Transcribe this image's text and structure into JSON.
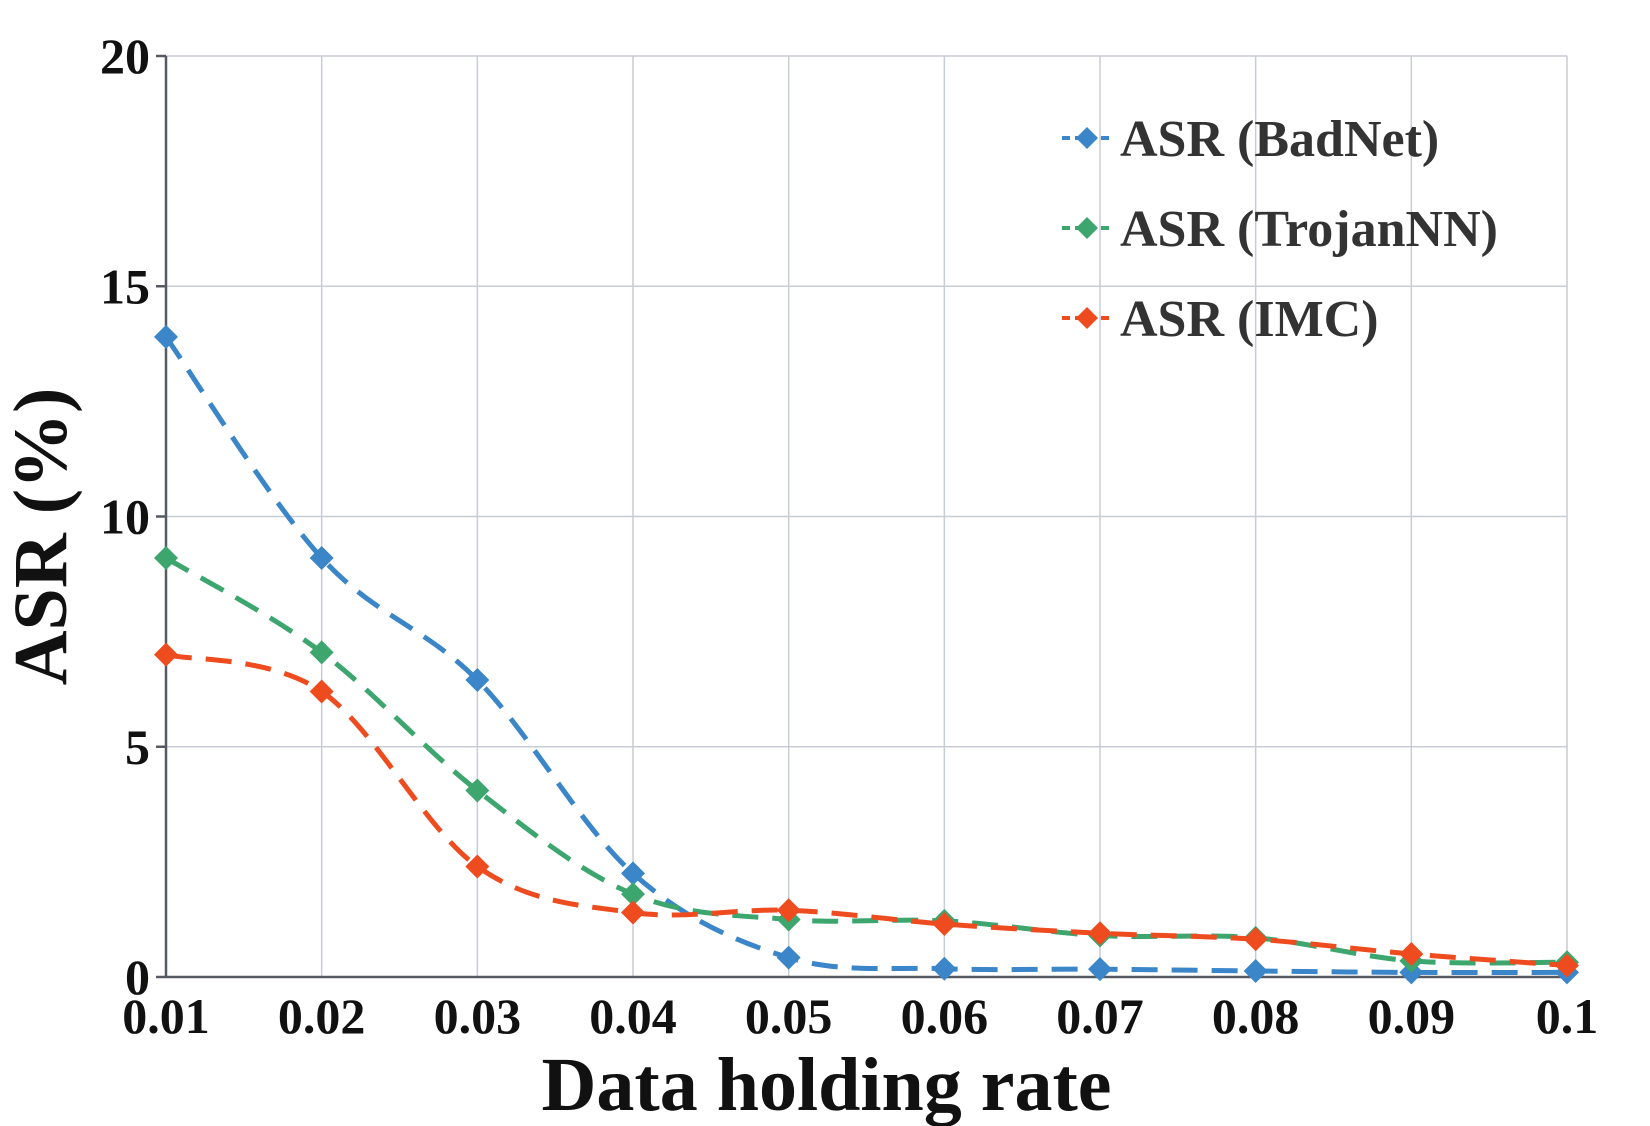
{
  "chart_data": {
    "type": "line",
    "xlabel": "Data holding rate",
    "ylabel": "ASR (%)",
    "x": [
      0.01,
      0.02,
      0.03,
      0.04,
      0.05,
      0.06,
      0.07,
      0.08,
      0.09,
      0.1
    ],
    "x_tick_labels": [
      "0.01",
      "0.02",
      "0.03",
      "0.04",
      "0.05",
      "0.06",
      "0.07",
      "0.08",
      "0.09",
      "0.1"
    ],
    "y_ticks": [
      0,
      5,
      10,
      15,
      20
    ],
    "y_tick_labels": [
      "0",
      "5",
      "10",
      "15",
      "20"
    ],
    "ylim": [
      0,
      20
    ],
    "grid": true,
    "legend_position": "top-right",
    "line_style": "dashed-smooth",
    "marker": "diamond",
    "series": [
      {
        "name": "ASR (BadNet)",
        "color": "#3A86C8",
        "values": [
          13.9,
          9.1,
          6.45,
          2.25,
          0.42,
          0.18,
          0.17,
          0.13,
          0.1,
          0.1
        ]
      },
      {
        "name": "ASR (TrojanNN)",
        "color": "#3DA56E",
        "values": [
          9.1,
          7.05,
          4.05,
          1.8,
          1.25,
          1.22,
          0.9,
          0.85,
          0.35,
          0.32
        ]
      },
      {
        "name": "ASR (IMC)",
        "color": "#EE4B1F",
        "values": [
          7.0,
          6.2,
          2.4,
          1.4,
          1.45,
          1.15,
          0.95,
          0.82,
          0.5,
          0.25
        ]
      }
    ]
  }
}
